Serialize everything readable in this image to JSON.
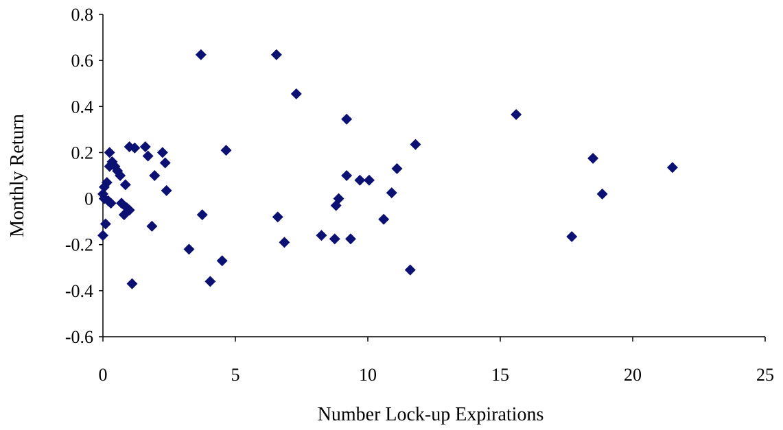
{
  "chart_data": {
    "type": "scatter",
    "xlabel": "Number Lock-up Expirations",
    "ylabel": "Monthly Return",
    "xlim": [
      0,
      25
    ],
    "ylim": [
      -0.6,
      0.8
    ],
    "x_ticks": [
      0,
      5,
      10,
      15,
      20,
      25
    ],
    "x_tick_labels": [
      "0",
      "5",
      "10",
      "15",
      "20",
      "25"
    ],
    "y_ticks": [
      -0.6,
      -0.4,
      -0.2,
      0,
      0.2,
      0.4,
      0.6,
      0.8
    ],
    "y_tick_labels": [
      "-0.6",
      "-0.4",
      "-0.2",
      "0",
      "0.2",
      "0.4",
      "0.6",
      "0.8"
    ],
    "grid": false,
    "legend": "none",
    "marker": "diamond",
    "point_color": "#0a1172",
    "points": [
      [
        0.0,
        -0.16
      ],
      [
        0.0,
        0.02
      ],
      [
        0.05,
        0.0
      ],
      [
        0.05,
        0.05
      ],
      [
        0.1,
        -0.11
      ],
      [
        0.15,
        0.07
      ],
      [
        0.2,
        -0.01
      ],
      [
        0.25,
        0.14
      ],
      [
        0.25,
        0.2
      ],
      [
        0.3,
        -0.02
      ],
      [
        0.35,
        0.16
      ],
      [
        0.45,
        0.14
      ],
      [
        0.55,
        0.12
      ],
      [
        0.65,
        0.1
      ],
      [
        0.7,
        -0.02
      ],
      [
        0.8,
        -0.07
      ],
      [
        0.85,
        0.06
      ],
      [
        0.9,
        -0.04
      ],
      [
        1.0,
        -0.05
      ],
      [
        1.0,
        0.225
      ],
      [
        1.1,
        -0.37
      ],
      [
        1.2,
        0.22
      ],
      [
        1.6,
        0.225
      ],
      [
        1.7,
        0.185
      ],
      [
        1.85,
        -0.12
      ],
      [
        1.95,
        0.1
      ],
      [
        2.25,
        0.2
      ],
      [
        2.35,
        0.155
      ],
      [
        2.4,
        0.035
      ],
      [
        3.25,
        -0.22
      ],
      [
        3.7,
        0.625
      ],
      [
        3.75,
        -0.07
      ],
      [
        4.05,
        -0.36
      ],
      [
        4.5,
        -0.27
      ],
      [
        4.65,
        0.21
      ],
      [
        6.55,
        0.625
      ],
      [
        6.6,
        -0.08
      ],
      [
        6.85,
        -0.19
      ],
      [
        7.3,
        0.455
      ],
      [
        8.25,
        -0.16
      ],
      [
        8.75,
        -0.175
      ],
      [
        8.8,
        -0.03
      ],
      [
        8.9,
        0.0
      ],
      [
        9.2,
        0.1
      ],
      [
        9.2,
        0.345
      ],
      [
        9.35,
        -0.175
      ],
      [
        9.7,
        0.08
      ],
      [
        10.05,
        0.08
      ],
      [
        10.6,
        -0.09
      ],
      [
        10.9,
        0.025
      ],
      [
        11.1,
        0.13
      ],
      [
        11.6,
        -0.31
      ],
      [
        11.8,
        0.235
      ],
      [
        15.6,
        0.365
      ],
      [
        17.7,
        -0.165
      ],
      [
        18.5,
        0.175
      ],
      [
        18.85,
        0.02
      ],
      [
        21.5,
        0.135
      ]
    ]
  }
}
